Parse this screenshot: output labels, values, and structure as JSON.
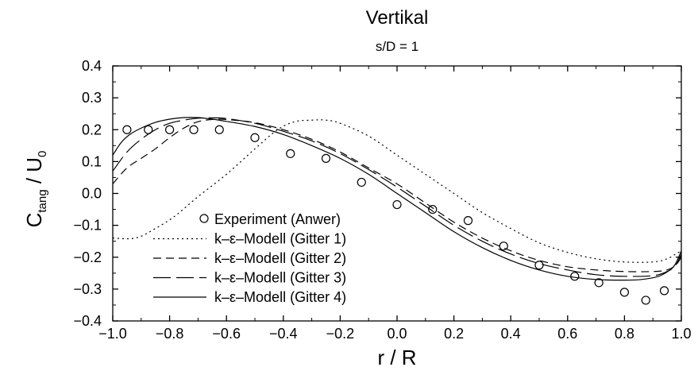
{
  "chart_data": {
    "type": "line",
    "title": "Vertikal",
    "subtitle": "s/D = 1",
    "xlabel": "r / R",
    "ylabel": {
      "main": "C",
      "sub1": "tang",
      "mid": " / U",
      "sub2": "0"
    },
    "xlim": [
      -1.0,
      1.0
    ],
    "ylim": [
      -0.4,
      0.4
    ],
    "xticks": [
      "−1.0",
      "−0.8",
      "−0.6",
      "−0.4",
      "−0.2",
      "0.0",
      "0.2",
      "0.4",
      "0.6",
      "0.8",
      "1.0"
    ],
    "yticks": [
      "−0.4",
      "−0.3",
      "−0.2",
      "−0.1",
      "0.0",
      "0.1",
      "0.2",
      "0.3",
      "0.4"
    ],
    "legend_position": "lower-left",
    "grid": false,
    "series": [
      {
        "name": "Experiment (Anwer)",
        "style": "markers",
        "marker": "circle",
        "x": [
          -0.95,
          -0.875,
          -0.8,
          -0.715,
          -0.625,
          -0.5,
          -0.375,
          -0.25,
          -0.125,
          0.0,
          0.125,
          0.25,
          0.375,
          0.5,
          0.625,
          0.71,
          0.8,
          0.875,
          0.94
        ],
        "y": [
          0.2,
          0.2,
          0.2,
          0.2,
          0.2,
          0.175,
          0.125,
          0.11,
          0.035,
          -0.035,
          -0.05,
          -0.085,
          -0.165,
          -0.225,
          -0.26,
          -0.28,
          -0.31,
          -0.335,
          -0.305
        ]
      },
      {
        "name": "k–ε–Modell (Gitter 1)",
        "style": "dotted",
        "x": [
          -1.0,
          -0.92,
          -0.85,
          -0.78,
          -0.7,
          -0.6,
          -0.5,
          -0.42,
          -0.36,
          -0.3,
          -0.25,
          -0.2,
          -0.1,
          0.0,
          0.1,
          0.2,
          0.3,
          0.4,
          0.5,
          0.6,
          0.7,
          0.8,
          0.9,
          0.95,
          0.98,
          1.0
        ],
        "y": [
          -0.14,
          -0.14,
          -0.11,
          -0.07,
          -0.01,
          0.06,
          0.14,
          0.2,
          0.225,
          0.23,
          0.23,
          0.22,
          0.18,
          0.12,
          0.06,
          0.0,
          -0.06,
          -0.11,
          -0.155,
          -0.185,
          -0.205,
          -0.215,
          -0.215,
          -0.205,
          -0.19,
          -0.18
        ]
      },
      {
        "name": "k–ε–Modell (Gitter 2)",
        "style": "dashed",
        "x": [
          -1.0,
          -0.95,
          -0.9,
          -0.85,
          -0.8,
          -0.75,
          -0.7,
          -0.65,
          -0.6,
          -0.5,
          -0.4,
          -0.3,
          -0.2,
          -0.1,
          0.0,
          0.1,
          0.2,
          0.3,
          0.4,
          0.5,
          0.6,
          0.7,
          0.8,
          0.9,
          0.95,
          0.98,
          1.0
        ],
        "y": [
          0.03,
          0.08,
          0.11,
          0.14,
          0.175,
          0.205,
          0.225,
          0.232,
          0.232,
          0.222,
          0.2,
          0.17,
          0.13,
          0.08,
          0.03,
          -0.03,
          -0.09,
          -0.14,
          -0.18,
          -0.21,
          -0.23,
          -0.24,
          -0.245,
          -0.245,
          -0.24,
          -0.225,
          -0.2
        ]
      },
      {
        "name": "k–ε–Modell (Gitter 3)",
        "style": "long-dashed",
        "x": [
          -1.0,
          -0.95,
          -0.9,
          -0.85,
          -0.8,
          -0.75,
          -0.7,
          -0.65,
          -0.6,
          -0.5,
          -0.4,
          -0.3,
          -0.2,
          -0.1,
          0.0,
          0.1,
          0.2,
          0.3,
          0.4,
          0.5,
          0.6,
          0.7,
          0.8,
          0.9,
          0.95,
          0.98,
          1.0
        ],
        "y": [
          0.07,
          0.13,
          0.17,
          0.2,
          0.22,
          0.23,
          0.236,
          0.237,
          0.235,
          0.22,
          0.195,
          0.165,
          0.125,
          0.075,
          0.02,
          -0.04,
          -0.1,
          -0.15,
          -0.19,
          -0.22,
          -0.24,
          -0.255,
          -0.26,
          -0.258,
          -0.245,
          -0.225,
          -0.19
        ]
      },
      {
        "name": "k–ε–Modell (Gitter 4)",
        "style": "solid",
        "x": [
          -1.0,
          -0.97,
          -0.94,
          -0.9,
          -0.85,
          -0.8,
          -0.75,
          -0.7,
          -0.65,
          -0.6,
          -0.5,
          -0.4,
          -0.3,
          -0.2,
          -0.1,
          0.0,
          0.1,
          0.2,
          0.3,
          0.4,
          0.5,
          0.6,
          0.7,
          0.8,
          0.86,
          0.92,
          0.96,
          0.98,
          1.0
        ],
        "y": [
          0.12,
          0.16,
          0.185,
          0.205,
          0.223,
          0.233,
          0.238,
          0.238,
          0.233,
          0.226,
          0.21,
          0.185,
          0.15,
          0.11,
          0.06,
          0.0,
          -0.06,
          -0.12,
          -0.17,
          -0.21,
          -0.24,
          -0.26,
          -0.27,
          -0.272,
          -0.27,
          -0.26,
          -0.24,
          -0.22,
          -0.18
        ]
      }
    ]
  }
}
